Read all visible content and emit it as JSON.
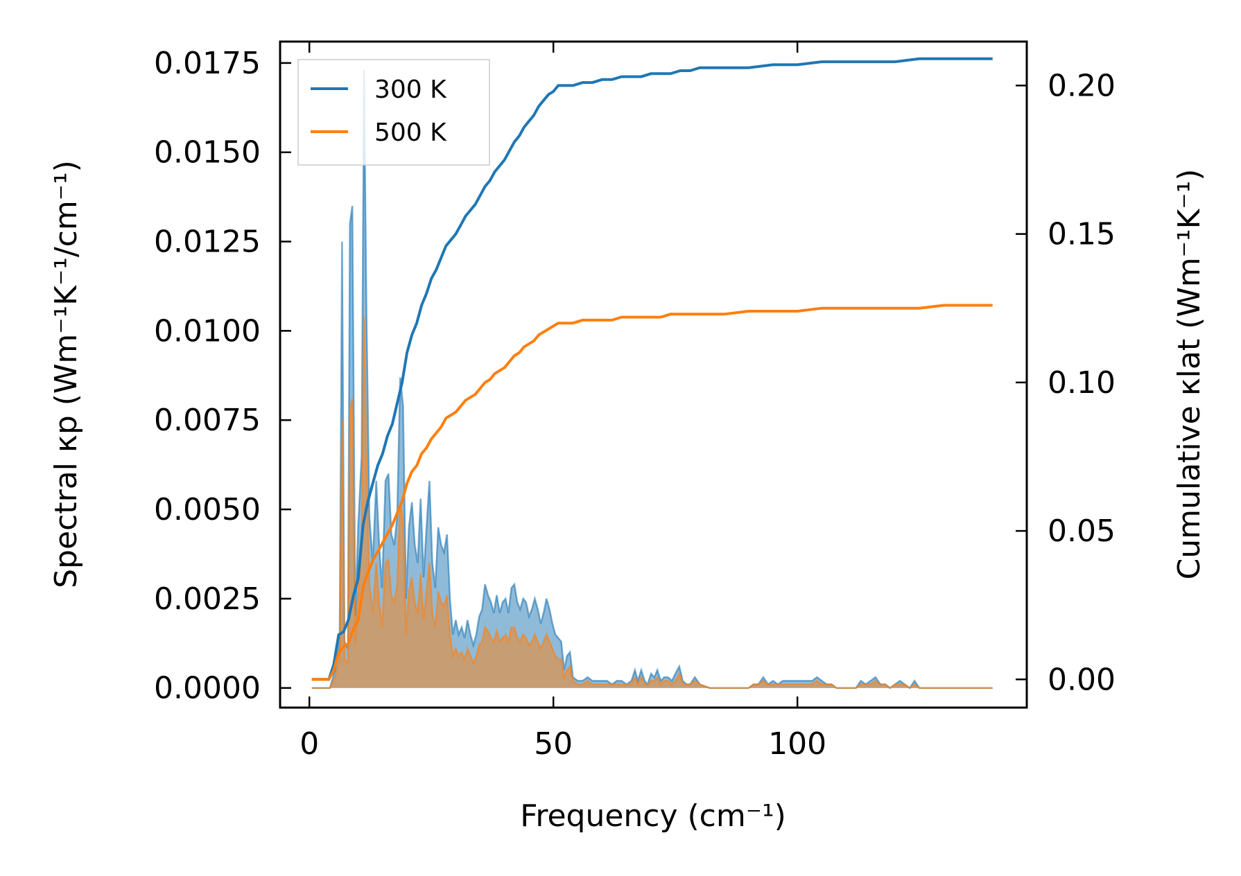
{
  "chart_data": {
    "type": "line",
    "title": "",
    "xlabel": "Frequency (cm⁻¹)",
    "ylabel_left": "Spectral κp (Wm⁻¹K⁻¹/cm⁻¹)",
    "ylabel_right": "Cumulative κlat (Wm⁻¹K⁻¹)",
    "xlim": [
      -6,
      147
    ],
    "ylim_left": [
      -0.00055,
      0.0181
    ],
    "ylim_right": [
      -0.0095,
      0.2148
    ],
    "xticks": [
      "0",
      "50",
      "100"
    ],
    "xtick_values": [
      0,
      50,
      100
    ],
    "yticks_left": [
      "0.0000",
      "0.0025",
      "0.0050",
      "0.0075",
      "0.0100",
      "0.0125",
      "0.0150",
      "0.0175"
    ],
    "ytick_values_left": [
      0,
      0.0025,
      0.005,
      0.0075,
      0.01,
      0.0125,
      0.015,
      0.0175
    ],
    "yticks_right": [
      "0.00",
      "0.05",
      "0.10",
      "0.15",
      "0.20"
    ],
    "ytick_values_right": [
      0,
      0.05,
      0.1,
      0.15,
      0.2
    ],
    "legend": {
      "placement": "top-left",
      "entries": [
        "300 K",
        "500 K"
      ]
    },
    "colors": {
      "300 K": "#1f77b4",
      "500 K": "#ff7f0e",
      "overlap_fill": "#c8a07a"
    },
    "spectral_series": [
      {
        "name": "300 K",
        "x": [
          0.5,
          3,
          4.2,
          5.3,
          6.2,
          6.7,
          7.2,
          7.9,
          8.3,
          8.8,
          9.4,
          10,
          10.7,
          11.2,
          11.7,
          12.3,
          13,
          13.7,
          14.3,
          14.9,
          15.6,
          16.2,
          16.8,
          17.4,
          18,
          18.6,
          19.2,
          19.8,
          20.4,
          21,
          21.6,
          22.2,
          22.8,
          23.4,
          24,
          24.6,
          25.2,
          25.8,
          26.4,
          27,
          27.6,
          28.2,
          28.8,
          29.4,
          30,
          30.6,
          31.2,
          31.8,
          32.4,
          33,
          33.6,
          34.2,
          34.8,
          35.4,
          36,
          36.6,
          37.2,
          37.8,
          38.4,
          39,
          39.6,
          40.2,
          40.8,
          41.4,
          42,
          42.6,
          43.2,
          43.8,
          44.4,
          45,
          45.6,
          46.2,
          46.8,
          47.4,
          48,
          48.6,
          49.2,
          49.8,
          50.4,
          51,
          51.6,
          52.2,
          52.8,
          53.4,
          54,
          55,
          56,
          57,
          58,
          59,
          60,
          61,
          62,
          63,
          64,
          65,
          66,
          66.7,
          67.3,
          68,
          68.7,
          69.3,
          70,
          70.7,
          71.3,
          72,
          72.7,
          73.5,
          74.3,
          75,
          75.8,
          76.5,
          77.3,
          78,
          79,
          80,
          82,
          85,
          88,
          90,
          91,
          92,
          93,
          94,
          95,
          96,
          97,
          98,
          99,
          100,
          101,
          102,
          103,
          104,
          105,
          106,
          107,
          108,
          110,
          112,
          113,
          114,
          115,
          116,
          117,
          118,
          119,
          120,
          121,
          122,
          123,
          124,
          125,
          126,
          127,
          128,
          130,
          133,
          136,
          140
        ],
        "y": [
          0.0,
          0.0,
          0.0,
          0.0005,
          0.0013,
          0.0125,
          0.0013,
          0.0011,
          0.013,
          0.0135,
          0.002,
          0.0045,
          0.0065,
          0.0173,
          0.0105,
          0.0048,
          0.0035,
          0.0058,
          0.004,
          0.0028,
          0.0058,
          0.006,
          0.0043,
          0.004,
          0.0048,
          0.0087,
          0.0079,
          0.0025,
          0.0045,
          0.0052,
          0.004,
          0.0035,
          0.0053,
          0.0031,
          0.0045,
          0.0058,
          0.0035,
          0.0028,
          0.0045,
          0.004,
          0.0038,
          0.0043,
          0.0025,
          0.0015,
          0.0019,
          0.0015,
          0.0017,
          0.0014,
          0.0019,
          0.0015,
          0.0012,
          0.0015,
          0.002,
          0.0022,
          0.0029,
          0.0026,
          0.0024,
          0.0021,
          0.0026,
          0.0021,
          0.0024,
          0.0025,
          0.0021,
          0.0028,
          0.0029,
          0.0024,
          0.0022,
          0.0025,
          0.0024,
          0.002,
          0.0022,
          0.0025,
          0.0022,
          0.0018,
          0.0021,
          0.0025,
          0.0022,
          0.0018,
          0.0015,
          0.0014,
          0.0013,
          0.0005,
          0.0009,
          0.001,
          0.0003,
          0.0002,
          0.0002,
          0.0003,
          0.0002,
          0.0002,
          0.0002,
          0.0002,
          0.0001,
          0.0002,
          0.0002,
          0.0001,
          0.0002,
          0.0005,
          0.0002,
          0.0005,
          0.0002,
          0.0001,
          0.0004,
          0.0003,
          0.0005,
          0.0002,
          0.0003,
          0.0003,
          0.0002,
          0.0004,
          0.0006,
          0.0002,
          0.0001,
          0.0001,
          0.0003,
          0.0001,
          0.0,
          0.0,
          0.0,
          0.0,
          0.0001,
          0.0001,
          0.0003,
          0.0001,
          0.0002,
          0.0001,
          0.0002,
          0.0002,
          0.0002,
          0.0002,
          0.0002,
          0.0002,
          0.0002,
          0.0003,
          0.0002,
          0.0001,
          0.0001,
          0.0,
          0.0,
          0.0,
          0.0002,
          0.0001,
          0.0002,
          0.0003,
          0.0001,
          0.0001,
          0.0,
          0.0001,
          0.0002,
          0.0001,
          0.0,
          0.0002,
          0.0,
          0.0,
          0.0,
          0.0,
          0.0,
          0.0,
          0.0,
          0.0
        ]
      },
      {
        "name": "500 K",
        "x": [
          0.5,
          3,
          4.2,
          5.3,
          6.2,
          6.7,
          7.2,
          7.9,
          8.3,
          8.8,
          9.4,
          10,
          10.7,
          11.2,
          11.7,
          12.3,
          13,
          13.7,
          14.3,
          14.9,
          15.6,
          16.2,
          16.8,
          17.4,
          18,
          18.6,
          19.2,
          19.8,
          20.4,
          21,
          21.6,
          22.2,
          22.8,
          23.4,
          24,
          24.6,
          25.2,
          25.8,
          26.4,
          27,
          27.6,
          28.2,
          28.8,
          29.4,
          30,
          30.6,
          31.2,
          31.8,
          32.4,
          33,
          33.6,
          34.2,
          34.8,
          35.4,
          36,
          36.6,
          37.2,
          37.8,
          38.4,
          39,
          39.6,
          40.2,
          40.8,
          41.4,
          42,
          42.6,
          43.2,
          43.8,
          44.4,
          45,
          45.6,
          46.2,
          46.8,
          47.4,
          48,
          48.6,
          49.2,
          49.8,
          50.4,
          51,
          51.6,
          52.2,
          52.8,
          53.4,
          54,
          55,
          56,
          57,
          58,
          59,
          60,
          61,
          62,
          63,
          64,
          65,
          66,
          66.7,
          67.3,
          68,
          68.7,
          69.3,
          70,
          70.7,
          71.3,
          72,
          72.7,
          73.5,
          74.3,
          75,
          75.8,
          76.5,
          77.3,
          78,
          79,
          80,
          82,
          85,
          88,
          90,
          91,
          92,
          93,
          94,
          95,
          96,
          97,
          98,
          99,
          100,
          101,
          102,
          103,
          104,
          105,
          106,
          107,
          108,
          110,
          112,
          113,
          114,
          115,
          116,
          117,
          118,
          119,
          120,
          121,
          122,
          123,
          124,
          125,
          126,
          127,
          128,
          130,
          133,
          136,
          140
        ],
        "y": [
          0.0,
          0.0,
          0.0,
          0.0003,
          0.0008,
          0.0075,
          0.0008,
          0.0007,
          0.0078,
          0.0081,
          0.0012,
          0.0027,
          0.0039,
          0.0104,
          0.0063,
          0.0029,
          0.0021,
          0.0035,
          0.0024,
          0.0017,
          0.0035,
          0.0036,
          0.0026,
          0.0024,
          0.0029,
          0.0052,
          0.0047,
          0.0015,
          0.0027,
          0.0031,
          0.0024,
          0.0021,
          0.0032,
          0.0019,
          0.0027,
          0.0035,
          0.0021,
          0.0017,
          0.0027,
          0.0024,
          0.0023,
          0.0026,
          0.0015,
          0.0009,
          0.0011,
          0.0009,
          0.001,
          0.0008,
          0.0011,
          0.0009,
          0.0007,
          0.0009,
          0.0012,
          0.0013,
          0.0017,
          0.0016,
          0.0014,
          0.0013,
          0.0016,
          0.0013,
          0.0014,
          0.0015,
          0.0013,
          0.0017,
          0.0017,
          0.0014,
          0.0013,
          0.0015,
          0.0014,
          0.0012,
          0.0013,
          0.0015,
          0.0013,
          0.0011,
          0.0013,
          0.0015,
          0.0013,
          0.0011,
          0.0009,
          0.0008,
          0.0008,
          0.0003,
          0.0005,
          0.0006,
          0.0002,
          0.0001,
          0.0001,
          0.0002,
          0.0001,
          0.0001,
          0.0001,
          0.0001,
          0.0001,
          0.0001,
          0.0001,
          0.0001,
          0.0001,
          0.0003,
          0.0001,
          0.0003,
          0.0001,
          0.0001,
          0.0002,
          0.0002,
          0.0003,
          0.0001,
          0.0002,
          0.0002,
          0.0001,
          0.0002,
          0.0004,
          0.0001,
          0.0001,
          0.0001,
          0.0002,
          0.0001,
          0.0,
          0.0,
          0.0,
          0.0,
          0.0001,
          0.0001,
          0.0002,
          0.0001,
          0.0001,
          0.0001,
          0.0001,
          0.0001,
          0.0001,
          0.0001,
          0.0001,
          0.0001,
          0.0001,
          0.0002,
          0.0001,
          0.0001,
          0.0001,
          0.0,
          0.0,
          0.0,
          0.0001,
          0.0001,
          0.0001,
          0.0002,
          0.0001,
          0.0001,
          0.0,
          0.0001,
          0.0001,
          0.0001,
          0.0,
          0.0001,
          0.0,
          0.0,
          0.0,
          0.0,
          0.0,
          0.0,
          0.0,
          0.0
        ]
      }
    ],
    "cumulative_series": [
      {
        "name": "300 K",
        "x": [
          0.5,
          4,
          5,
          6,
          7,
          8,
          9,
          10,
          11,
          12,
          13,
          14,
          15,
          16,
          17,
          18,
          19,
          20,
          21,
          22,
          23,
          24,
          25,
          26,
          27,
          28,
          29,
          30,
          31,
          32,
          33,
          34,
          35,
          36,
          37,
          38,
          39,
          40,
          41,
          42,
          43,
          44,
          45,
          46,
          47,
          48,
          49,
          50,
          51,
          52,
          53,
          54,
          56,
          58,
          60,
          62,
          64,
          66,
          68,
          70,
          72,
          74,
          76,
          78,
          80,
          85,
          90,
          95,
          100,
          105,
          110,
          115,
          120,
          125,
          130,
          135,
          140
        ],
        "y": [
          0.0,
          0.0,
          0.005,
          0.015,
          0.016,
          0.02,
          0.028,
          0.034,
          0.052,
          0.06,
          0.066,
          0.072,
          0.076,
          0.082,
          0.086,
          0.093,
          0.1,
          0.11,
          0.116,
          0.12,
          0.126,
          0.13,
          0.135,
          0.138,
          0.142,
          0.146,
          0.148,
          0.15,
          0.153,
          0.156,
          0.158,
          0.16,
          0.163,
          0.166,
          0.168,
          0.171,
          0.173,
          0.175,
          0.178,
          0.181,
          0.183,
          0.186,
          0.188,
          0.19,
          0.193,
          0.195,
          0.197,
          0.198,
          0.2,
          0.2,
          0.2,
          0.2,
          0.201,
          0.201,
          0.202,
          0.202,
          0.203,
          0.203,
          0.203,
          0.204,
          0.204,
          0.204,
          0.205,
          0.205,
          0.206,
          0.206,
          0.206,
          0.207,
          0.207,
          0.208,
          0.208,
          0.208,
          0.208,
          0.209,
          0.209,
          0.209,
          0.209
        ]
      },
      {
        "name": "500 K",
        "x": [
          0.5,
          4,
          5,
          6,
          7,
          8,
          9,
          10,
          11,
          12,
          13,
          14,
          15,
          16,
          17,
          18,
          19,
          20,
          21,
          22,
          23,
          24,
          25,
          26,
          27,
          28,
          29,
          30,
          31,
          32,
          33,
          34,
          35,
          36,
          37,
          38,
          39,
          40,
          41,
          42,
          43,
          44,
          45,
          46,
          47,
          48,
          49,
          50,
          51,
          52,
          53,
          54,
          56,
          58,
          60,
          62,
          64,
          66,
          68,
          70,
          72,
          74,
          76,
          78,
          80,
          85,
          90,
          95,
          100,
          105,
          110,
          115,
          120,
          125,
          130,
          135,
          140
        ],
        "y": [
          0.0,
          0.0,
          0.003,
          0.009,
          0.011,
          0.012,
          0.017,
          0.02,
          0.031,
          0.036,
          0.04,
          0.043,
          0.046,
          0.049,
          0.052,
          0.056,
          0.06,
          0.066,
          0.07,
          0.072,
          0.076,
          0.078,
          0.081,
          0.083,
          0.085,
          0.088,
          0.089,
          0.09,
          0.092,
          0.094,
          0.095,
          0.096,
          0.098,
          0.1,
          0.101,
          0.103,
          0.104,
          0.105,
          0.107,
          0.109,
          0.11,
          0.112,
          0.113,
          0.114,
          0.116,
          0.117,
          0.118,
          0.119,
          0.12,
          0.12,
          0.12,
          0.12,
          0.121,
          0.121,
          0.121,
          0.121,
          0.122,
          0.122,
          0.122,
          0.122,
          0.122,
          0.123,
          0.123,
          0.123,
          0.123,
          0.123,
          0.124,
          0.124,
          0.124,
          0.125,
          0.125,
          0.125,
          0.125,
          0.125,
          0.126,
          0.126,
          0.126
        ]
      }
    ]
  }
}
